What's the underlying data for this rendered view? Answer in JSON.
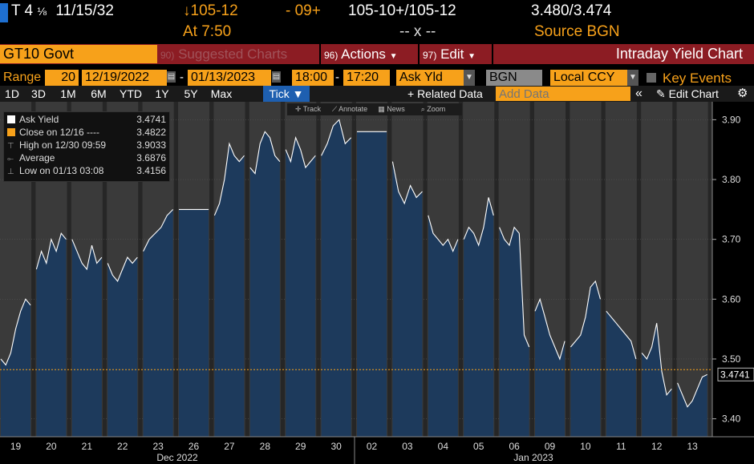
{
  "quote": {
    "ticker": "T 4",
    "frac": "⅛",
    "maturity": "11/15/32",
    "arrow": "↓",
    "price": "105-12",
    "change": "- 09+",
    "bid": "105-10+",
    "ask": "105-12",
    "sep": "/",
    "yield_bid": "3.480",
    "yield_ask": "3.474",
    "at": "At 7:50",
    "dash": "-- x --",
    "source": "Source BGN"
  },
  "toolbar": {
    "security": "GT10 Govt",
    "suggested_num": "90",
    "suggested": "Suggested Charts",
    "actions_num": "96",
    "actions": "Actions",
    "edit_num": "97",
    "edit": "Edit",
    "title": "Intraday Yield Chart"
  },
  "controls": {
    "range_label": "Range",
    "range_days": "20",
    "start": "12/19/2022",
    "dash": "-",
    "end": "01/13/2023",
    "time_start": "18:00",
    "time_end": "17:20",
    "field": "Ask Yld",
    "source": "BGN",
    "currency": "Local CCY",
    "key_events": "Key Events"
  },
  "periods": [
    "1D",
    "3D",
    "1M",
    "6M",
    "YTD",
    "1Y",
    "5Y",
    "Max"
  ],
  "tick": "Tick ▼",
  "related": "+ Related Data",
  "add_data_placeholder": "Add Data",
  "edit_chart": "Edit Chart",
  "tools": [
    "Track",
    "Annotate",
    "News",
    "Zoom"
  ],
  "legend": [
    {
      "label": "Ask Yield",
      "value": "3.4741",
      "color": "#ffffff"
    },
    {
      "label": "Close on 12/16 ----",
      "value": "3.4822",
      "color": "#f7a11a"
    },
    {
      "label": "High on 12/30 09:59",
      "value": "3.9033",
      "color": "#cccccc"
    },
    {
      "label": "Average",
      "value": "3.6876",
      "color": "#cccccc"
    },
    {
      "label": "Low on 01/13 03:08",
      "value": "3.4156",
      "color": "#cccccc"
    }
  ],
  "chart_data": {
    "type": "area",
    "title": "Intraday Yield Chart",
    "y_ticks": [
      "3.90",
      "3.80",
      "3.70",
      "3.60",
      "3.50",
      "3.40"
    ],
    "ylim": [
      3.37,
      3.93
    ],
    "reference_line": {
      "label": "Close on 12/16",
      "value": 3.4822
    },
    "last_value_label": "3.4741",
    "x_day_labels": [
      "19",
      "20",
      "21",
      "22",
      "23",
      "26",
      "27",
      "28",
      "29",
      "30",
      "02",
      "03",
      "04",
      "05",
      "06",
      "09",
      "10",
      "11",
      "12",
      "13"
    ],
    "month_labels": [
      "Dec 2022",
      "Jan 2023"
    ],
    "series": [
      {
        "name": "Ask Yield",
        "points": [
          {
            "day": "19",
            "values": [
              3.5,
              3.49,
              3.51,
              3.55,
              3.58,
              3.6,
              3.59
            ]
          },
          {
            "day": "20",
            "values": [
              3.65,
              3.68,
              3.66,
              3.7,
              3.68,
              3.71,
              3.7
            ]
          },
          {
            "day": "21",
            "values": [
              3.7,
              3.68,
              3.66,
              3.65,
              3.69,
              3.66,
              3.67
            ]
          },
          {
            "day": "22",
            "values": [
              3.66,
              3.64,
              3.63,
              3.65,
              3.67,
              3.66,
              3.67
            ]
          },
          {
            "day": "23",
            "values": [
              3.68,
              3.7,
              3.71,
              3.72,
              3.74,
              3.75
            ]
          },
          {
            "day": "26",
            "values": [
              3.75,
              3.75
            ]
          },
          {
            "day": "27",
            "values": [
              3.74,
              3.76,
              3.8,
              3.86,
              3.84,
              3.83,
              3.84
            ]
          },
          {
            "day": "28",
            "values": [
              3.82,
              3.81,
              3.86,
              3.88,
              3.87,
              3.84,
              3.83
            ]
          },
          {
            "day": "29",
            "values": [
              3.85,
              3.83,
              3.87,
              3.85,
              3.82,
              3.83,
              3.84
            ]
          },
          {
            "day": "30",
            "values": [
              3.84,
              3.86,
              3.89,
              3.9,
              3.86,
              3.87
            ]
          },
          {
            "day": "02",
            "values": [
              3.88,
              3.88
            ]
          },
          {
            "day": "03",
            "values": [
              3.83,
              3.78,
              3.76,
              3.79,
              3.77,
              3.78
            ]
          },
          {
            "day": "04",
            "values": [
              3.74,
              3.71,
              3.7,
              3.69,
              3.7,
              3.68,
              3.7
            ]
          },
          {
            "day": "05",
            "values": [
              3.7,
              3.72,
              3.71,
              3.69,
              3.72,
              3.77,
              3.74
            ]
          },
          {
            "day": "06",
            "values": [
              3.72,
              3.7,
              3.69,
              3.72,
              3.71,
              3.54,
              3.52
            ]
          },
          {
            "day": "09",
            "values": [
              3.58,
              3.6,
              3.57,
              3.54,
              3.52,
              3.5,
              3.53
            ]
          },
          {
            "day": "10",
            "values": [
              3.52,
              3.53,
              3.54,
              3.57,
              3.62,
              3.63,
              3.6
            ]
          },
          {
            "day": "11",
            "values": [
              3.58,
              3.57,
              3.56,
              3.55,
              3.54,
              3.53,
              3.5
            ]
          },
          {
            "day": "12",
            "values": [
              3.51,
              3.5,
              3.52,
              3.56,
              3.48,
              3.44,
              3.45
            ]
          },
          {
            "day": "13",
            "values": [
              3.46,
              3.44,
              3.42,
              3.43,
              3.45,
              3.47,
              3.474
            ]
          }
        ]
      }
    ]
  }
}
